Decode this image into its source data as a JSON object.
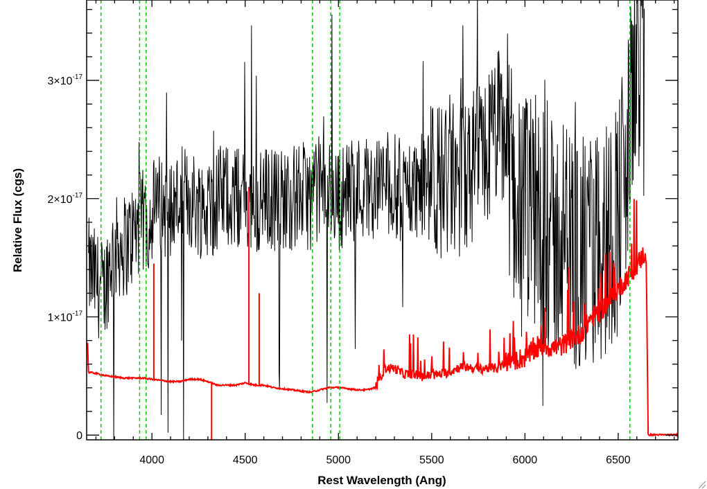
{
  "chart_data": {
    "type": "line",
    "xlabel": "Rest Wavelength (Ang)",
    "ylabel": "Relative Flux (cgs)",
    "xlim": [
      3650,
      6820
    ],
    "ylim": [
      -4e-19,
      3.68e-17
    ],
    "x_ticks": [
      4000,
      4500,
      5000,
      5500,
      6000,
      6500
    ],
    "y_ticks": [
      {
        "value": 0,
        "base": "0",
        "exp": ""
      },
      {
        "value": 1e-17,
        "base": "1×10",
        "exp": "-17"
      },
      {
        "value": 2e-17,
        "base": "2×10",
        "exp": "-17"
      },
      {
        "value": 3e-17,
        "base": "3×10",
        "exp": "-17"
      }
    ],
    "grid": false,
    "legend": "none",
    "colors": {
      "spectrum": "#000000",
      "model": "#ff0000",
      "lines": "#00cc00"
    },
    "series": [
      {
        "style": "black-noisy",
        "x": [
          3660,
          3700,
          3740,
          3780,
          3820,
          3860,
          3900,
          3940,
          3980,
          4000,
          4050,
          4100,
          4150,
          4200,
          4250,
          4300,
          4350,
          4400,
          4450,
          4500,
          4550,
          4600,
          4650,
          4700,
          4750,
          4800,
          4850,
          4900,
          4950,
          5000,
          5050,
          5100,
          5150,
          5200,
          5250,
          5300,
          5350,
          5400,
          5450,
          5500,
          5550,
          5600,
          5650,
          5700,
          5750,
          5800,
          5850,
          5900,
          5950,
          6000,
          6050,
          6100,
          6150,
          6200,
          6250,
          6300,
          6350,
          6400,
          6450,
          6500,
          6550,
          6600,
          6640
        ],
        "y": [
          1.4e-17,
          1.3e-17,
          1.2e-17,
          1.5e-17,
          1.6e-17,
          1.6e-17,
          1.7e-17,
          1.8e-17,
          1.8e-17,
          1.9e-17,
          1.95e-17,
          1.9e-17,
          2e-17,
          2e-17,
          1.95e-17,
          1.9e-17,
          2e-17,
          2.05e-17,
          2e-17,
          2e-17,
          1.9e-17,
          2e-17,
          2e-17,
          2e-17,
          2e-17,
          2.05e-17,
          2e-17,
          2.1e-17,
          2.05e-17,
          2e-17,
          2.05e-17,
          2.1e-17,
          2.1e-17,
          2.1e-17,
          2.15e-17,
          2.1e-17,
          2.05e-17,
          2.1e-17,
          2.1e-17,
          2.1e-17,
          2.15e-17,
          2.2e-17,
          2.1e-17,
          2.2e-17,
          2.3e-17,
          2.4e-17,
          2.6e-17,
          2.5e-17,
          2e-17,
          1.8e-17,
          1.9e-17,
          1.8e-17,
          1.6e-17,
          1.7e-17,
          1.6e-17,
          1.5e-17,
          1.5e-17,
          1.6e-17,
          1.7e-17,
          1.9e-17,
          2.3e-17,
          3.4e-17,
          3.5e-17
        ]
      },
      {
        "style": "red-model",
        "x": [
          3655,
          3660,
          3700,
          3750,
          3800,
          3850,
          3900,
          3950,
          4000,
          4050,
          4100,
          4150,
          4200,
          4250,
          4300,
          4350,
          4400,
          4450,
          4500,
          4550,
          4600,
          4650,
          4700,
          4750,
          4800,
          4850,
          4900,
          4950,
          5000,
          5050,
          5100,
          5150,
          5200,
          5250,
          5300,
          5350,
          5400,
          5450,
          5500,
          5550,
          5600,
          5650,
          5700,
          5750,
          5800,
          5850,
          5900,
          5950,
          6000,
          6050,
          6100,
          6150,
          6200,
          6250,
          6300,
          6350,
          6400,
          6450,
          6500,
          6550,
          6600,
          6640,
          6650,
          6660,
          6820
        ],
        "y": [
          7.8e-18,
          5.3e-18,
          5.2e-18,
          5e-18,
          4.9e-18,
          4.8e-18,
          4.8e-18,
          4.8e-18,
          4.7e-18,
          4.6e-18,
          4.5e-18,
          4.5e-18,
          4.7e-18,
          4.7e-18,
          4.5e-18,
          4.2e-18,
          4.2e-18,
          4.2e-18,
          4.4e-18,
          4.2e-18,
          4.2e-18,
          4e-18,
          3.9e-18,
          3.8e-18,
          3.7e-18,
          3.6e-18,
          3.8e-18,
          4e-18,
          4e-18,
          3.9e-18,
          3.8e-18,
          3.8e-18,
          4e-18,
          5.5e-18,
          5.5e-18,
          5e-18,
          5e-18,
          4.8e-18,
          4.9e-18,
          5e-18,
          5.2e-18,
          5.6e-18,
          5.6e-18,
          5.4e-18,
          5.5e-18,
          5.5e-18,
          5.8e-18,
          6e-18,
          6.2e-18,
          6.8e-18,
          7.2e-18,
          7e-18,
          7.2e-18,
          7.8e-18,
          8.2e-18,
          9.5e-18,
          1e-17,
          1.1e-17,
          1.2e-17,
          1.3e-17,
          1.4e-17,
          1.5e-17,
          1.5e-17,
          0.0,
          0.0
        ]
      }
    ],
    "vertical_lines": [
      3727,
      3934,
      3969,
      4861,
      4959,
      5007,
      6563
    ]
  }
}
